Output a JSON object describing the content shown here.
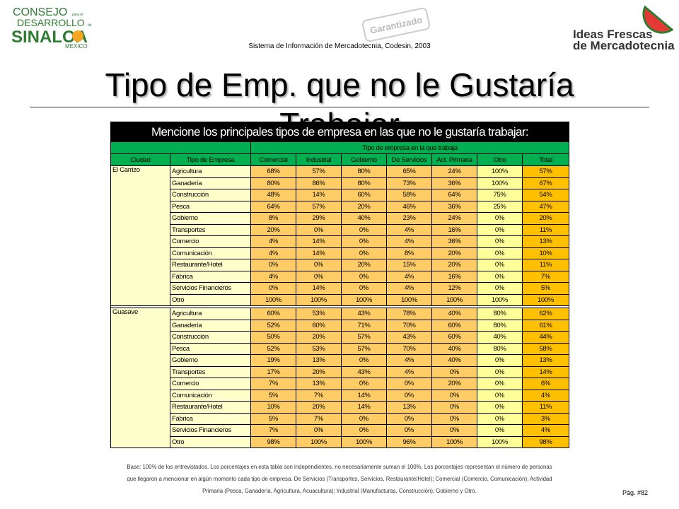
{
  "header": {
    "logo_left": {
      "line1": "CONSEJO",
      "small1": "para el",
      "line2": "DESARROLLO",
      "small2": "de",
      "line3": "SINALOA",
      "line4": "MEXICO"
    },
    "stamp": "Garantizado",
    "logo_right": {
      "line1": "Ideas Frescas",
      "line2": "de Mercadotecnia"
    },
    "subtitle": "Sistema de Información de Mercadotecnia, Codesin, 2003",
    "title": "Tipo de Emp. que no le Gustaría Trabajar"
  },
  "table": {
    "title": "Mencione los principales tipos de empresa en las que no le gustaría trabajar:",
    "group_header": "Tipo de empresa en la que trabaja",
    "columns": [
      "Ciudad",
      "Tipo de Empresa",
      "Comercial",
      "Industrial",
      "Gobierno",
      "De Servicios",
      "Act. Primaria",
      "Otro",
      "Total"
    ],
    "groups": [
      {
        "city": "El Carrizo",
        "rows": [
          {
            "type": "Agricultura",
            "cells": [
              "68%",
              "57%",
              "80%",
              "65%",
              "24%",
              "100%",
              "57%"
            ]
          },
          {
            "type": "Ganadería",
            "cells": [
              "80%",
              "86%",
              "80%",
              "73%",
              "36%",
              "100%",
              "67%"
            ]
          },
          {
            "type": "Construcción",
            "cells": [
              "48%",
              "14%",
              "60%",
              "58%",
              "64%",
              "75%",
              "54%"
            ]
          },
          {
            "type": "Pesca",
            "cells": [
              "64%",
              "57%",
              "20%",
              "46%",
              "36%",
              "25%",
              "47%"
            ]
          },
          {
            "type": "Gobierno",
            "cells": [
              "8%",
              "29%",
              "40%",
              "23%",
              "24%",
              "0%",
              "20%"
            ]
          },
          {
            "type": "Transportes",
            "cells": [
              "20%",
              "0%",
              "0%",
              "4%",
              "16%",
              "0%",
              "11%"
            ]
          },
          {
            "type": "Comercio",
            "cells": [
              "4%",
              "14%",
              "0%",
              "4%",
              "36%",
              "0%",
              "13%"
            ]
          },
          {
            "type": "Comunicación",
            "cells": [
              "4%",
              "14%",
              "0%",
              "8%",
              "20%",
              "0%",
              "10%"
            ]
          },
          {
            "type": "Restaurante/Hotel",
            "cells": [
              "0%",
              "0%",
              "20%",
              "15%",
              "20%",
              "0%",
              "11%"
            ]
          },
          {
            "type": "Fábrica",
            "cells": [
              "4%",
              "0%",
              "0%",
              "4%",
              "16%",
              "0%",
              "7%"
            ]
          },
          {
            "type": "Servicios Financieros",
            "cells": [
              "0%",
              "14%",
              "0%",
              "4%",
              "12%",
              "0%",
              "5%"
            ]
          },
          {
            "type": "Otro",
            "cells": [
              "100%",
              "100%",
              "100%",
              "100%",
              "100%",
              "100%",
              "100%"
            ]
          }
        ]
      },
      {
        "city": "Guasave",
        "rows": [
          {
            "type": "Agricultura",
            "cells": [
              "60%",
              "53%",
              "43%",
              "78%",
              "40%",
              "80%",
              "62%"
            ]
          },
          {
            "type": "Ganadería",
            "cells": [
              "52%",
              "60%",
              "71%",
              "70%",
              "60%",
              "80%",
              "61%"
            ]
          },
          {
            "type": "Construcción",
            "cells": [
              "50%",
              "20%",
              "57%",
              "43%",
              "60%",
              "40%",
              "44%"
            ]
          },
          {
            "type": "Pesca",
            "cells": [
              "52%",
              "53%",
              "57%",
              "70%",
              "40%",
              "80%",
              "58%"
            ]
          },
          {
            "type": "Gobierno",
            "cells": [
              "19%",
              "13%",
              "0%",
              "4%",
              "40%",
              "0%",
              "13%"
            ]
          },
          {
            "type": "Transportes",
            "cells": [
              "17%",
              "20%",
              "43%",
              "4%",
              "0%",
              "0%",
              "14%"
            ]
          },
          {
            "type": "Comercio",
            "cells": [
              "7%",
              "13%",
              "0%",
              "0%",
              "20%",
              "0%",
              "6%"
            ]
          },
          {
            "type": "Comunicación",
            "cells": [
              "5%",
              "7%",
              "14%",
              "0%",
              "0%",
              "0%",
              "4%"
            ]
          },
          {
            "type": "Restaurante/Hotel",
            "cells": [
              "10%",
              "20%",
              "14%",
              "13%",
              "0%",
              "0%",
              "11%"
            ]
          },
          {
            "type": "Fábrica",
            "cells": [
              "5%",
              "7%",
              "0%",
              "0%",
              "0%",
              "0%",
              "3%"
            ]
          },
          {
            "type": "Servicios Financieros",
            "cells": [
              "7%",
              "0%",
              "0%",
              "0%",
              "0%",
              "0%",
              "4%"
            ]
          },
          {
            "type": "Otro",
            "cells": [
              "98%",
              "100%",
              "100%",
              "96%",
              "100%",
              "100%",
              "98%"
            ]
          }
        ]
      }
    ]
  },
  "footnote": [
    "Base: 100% de los entrevistados. Los porcentajes en esta tabla son independientes, no necesariamente suman el 100%. Los porcentajes representan el número de personas",
    "que llegaron a mencionar en algún momento cada tipo de empresa. De Servicios (Transportes, Servicios, Restaurante/Hotel); Comercial (Comercio, Comunicación); Actividad",
    "Primaria (Pesca, Ganadería, Agricultura, Acuacultura); Industrial (Manufacturas, Construcción); Gobierno y Otro."
  ],
  "page": "Pág. #82"
}
